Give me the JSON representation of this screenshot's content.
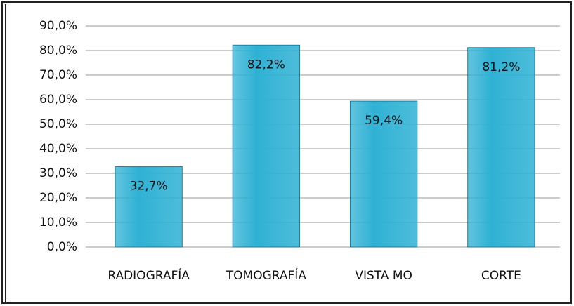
{
  "chart_data": {
    "type": "bar",
    "categories": [
      "RADIOGRAFÍA",
      "TOMOGRAFÍA",
      "VISTA MO",
      "CORTE"
    ],
    "values": [
      32.7,
      82.2,
      59.4,
      81.2
    ],
    "value_labels": [
      "32,7%",
      "82,2%",
      "59,4%",
      "81,2%"
    ],
    "color": "#2fb1d4",
    "ylim": [
      0,
      90
    ],
    "yticks": [
      {
        "value": 0,
        "label": "0,0%"
      },
      {
        "value": 10,
        "label": "10,0%"
      },
      {
        "value": 20,
        "label": "20,0%"
      },
      {
        "value": 30,
        "label": "30,0%"
      },
      {
        "value": 40,
        "label": "40,0%"
      },
      {
        "value": 50,
        "label": "50,0%"
      },
      {
        "value": 60,
        "label": "60,0%"
      },
      {
        "value": 70,
        "label": "70,0%"
      },
      {
        "value": 80,
        "label": "80,0%"
      },
      {
        "value": 90,
        "label": "90,0%"
      }
    ],
    "grid": true
  }
}
